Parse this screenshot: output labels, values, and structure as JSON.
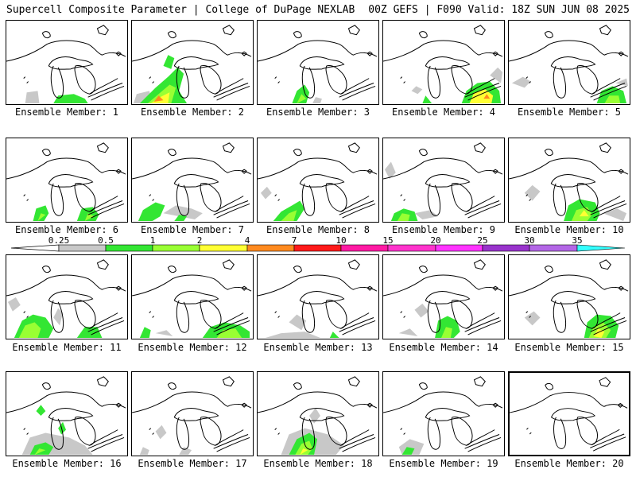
{
  "header": {
    "title": "Supercell Composite Parameter | College of DuPage NEXLAB",
    "run_info": "00Z GEFS | F090 Valid: 18Z SUN JUN 08 2025"
  },
  "legend": {
    "ticks": [
      "0.25",
      "0.5",
      "1",
      "2",
      "4",
      "7",
      "10",
      "15",
      "20",
      "25",
      "30",
      "35"
    ],
    "colors": [
      "#c8c8c8",
      "#33e633",
      "#99ff33",
      "#ffff33",
      "#ff8a1f",
      "#ff1a1a",
      "#ff1aa3",
      "#ff33cc",
      "#ff33ff",
      "#9933cc",
      "#b366e6",
      "#33ffff"
    ]
  },
  "members": [
    {
      "label": "Ensemble Member: 1"
    },
    {
      "label": "Ensemble Member: 2"
    },
    {
      "label": "Ensemble Member: 3"
    },
    {
      "label": "Ensemble Member: 4"
    },
    {
      "label": "Ensemble Member: 5"
    },
    {
      "label": "Ensemble Member: 6"
    },
    {
      "label": "Ensemble Member: 7"
    },
    {
      "label": "Ensemble Member: 8"
    },
    {
      "label": "Ensemble Member: 9"
    },
    {
      "label": "Ensemble Member: 10"
    },
    {
      "label": "Ensemble Member: 11"
    },
    {
      "label": "Ensemble Member: 12"
    },
    {
      "label": "Ensemble Member: 13"
    },
    {
      "label": "Ensemble Member: 14"
    },
    {
      "label": "Ensemble Member: 15"
    },
    {
      "label": "Ensemble Member: 16"
    },
    {
      "label": "Ensemble Member: 17"
    },
    {
      "label": "Ensemble Member: 18"
    },
    {
      "label": "Ensemble Member: 19"
    },
    {
      "label": "Ensemble Member: 20"
    }
  ]
}
